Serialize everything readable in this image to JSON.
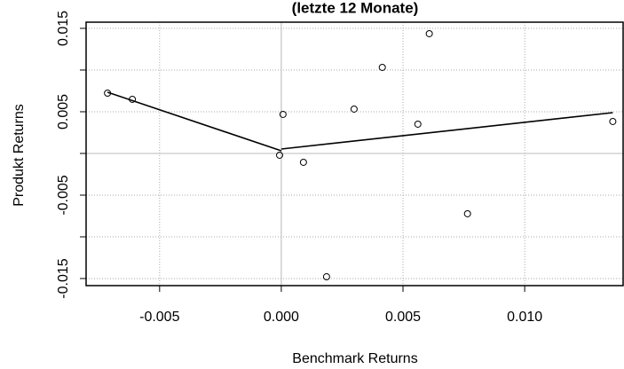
{
  "chart_data": {
    "type": "scatter",
    "title": "(letzte 12 Monate)",
    "x_label": "Benchmark Returns",
    "y_label": "Produkt Returns",
    "x": [
      -0.00714,
      -0.00612,
      -7e-05,
      7e-05,
      0.00091,
      0.00186,
      0.00299,
      0.00415,
      0.00561,
      0.00608,
      0.00765,
      0.01362
    ],
    "y": [
      0.00723,
      0.00649,
      -0.00021,
      0.00468,
      -0.00106,
      -0.01479,
      0.00532,
      0.01032,
      0.00351,
      0.01436,
      -0.00723,
      0.00383
    ],
    "lines": [
      {
        "x": [
          -0.00714,
          0
        ],
        "y": [
          0.00734,
          0.00032
        ]
      },
      {
        "x": [
          0,
          0.01362
        ],
        "y": [
          0.00053,
          0.00489
        ]
      }
    ],
    "xlim": [
      -0.00802,
      0.01408
    ],
    "ylim": [
      -0.01585,
      0.01574
    ],
    "xticks": [
      -0.005,
      {
        "value": 0,
        "label": "0.000"
      },
      0.005,
      {
        "value": 0.01,
        "label": "0.010"
      }
    ],
    "yticks": [
      -0.015,
      {
        "value": -0.01,
        "label": null
      },
      -0.005,
      {
        "value": 0,
        "label": null
      },
      0.005,
      {
        "value": 0.01,
        "label": null
      },
      0.015
    ],
    "grid": true
  }
}
